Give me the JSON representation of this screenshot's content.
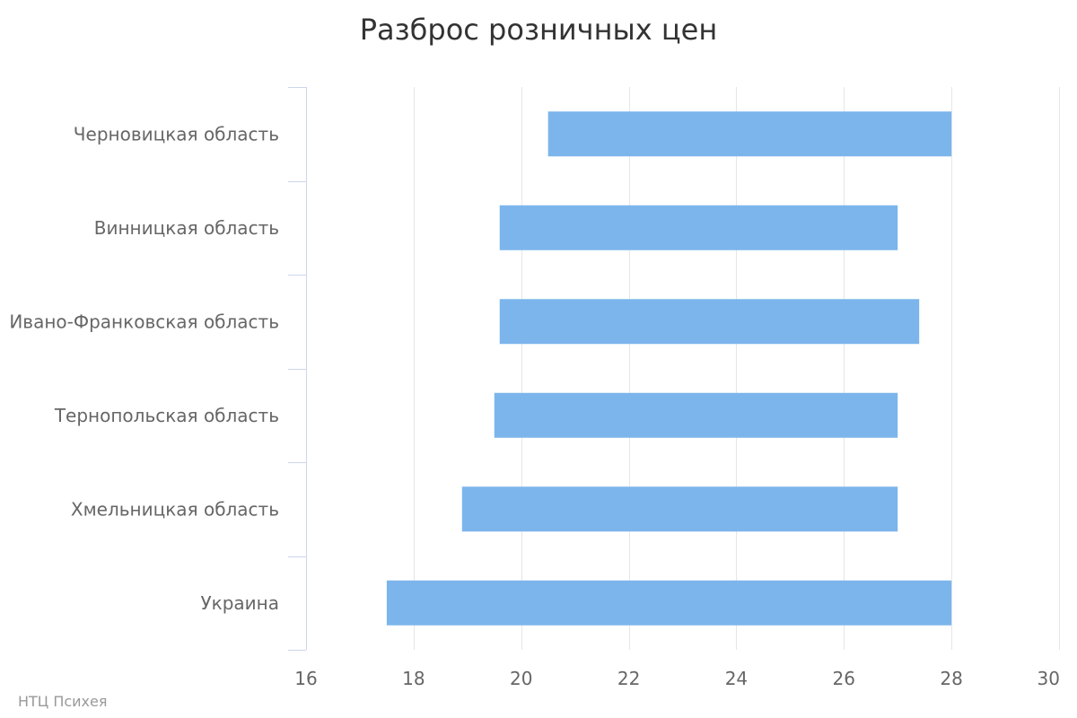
{
  "chart_data": {
    "type": "bar",
    "orientation": "horizontal",
    "title": "Разброс розничных цен",
    "categories": [
      "Черновицкая область",
      "Винницкая область",
      "Ивано-Франковская область",
      "Тернопольская область",
      "Хмельницкая область",
      "Украина"
    ],
    "series": [
      {
        "ranges": [
          [
            20.5,
            28.0
          ],
          [
            19.6,
            27.0
          ],
          [
            19.6,
            27.4
          ],
          [
            19.5,
            27.0
          ],
          [
            18.9,
            27.0
          ],
          [
            17.5,
            28.0
          ]
        ]
      }
    ],
    "xlim": [
      16,
      30
    ],
    "xticks": [
      16,
      18,
      20,
      22,
      24,
      26,
      28,
      30
    ],
    "grid": true,
    "bar_color": "#7cb5ec"
  },
  "credit": "НТЦ Психея"
}
